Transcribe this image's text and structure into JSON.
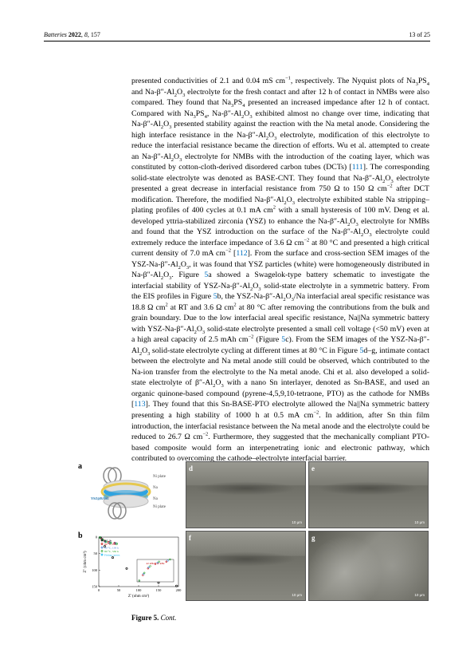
{
  "header": {
    "journal": "Batteries",
    "year": "2022",
    "volume": "8",
    "article": "157",
    "page": "13 of 25"
  },
  "body_html": "presented conductivities of 2.1 and 0.04 mS cm<sup>−1</sup>, respectively. The Nyquist plots of Na<sub>3</sub>PS<sub>4</sub> and Na-β″-Al<sub>2</sub>O<sub>3</sub> electrolyte for the fresh contact and after 12 h of contact in NMBs were also compared. They found that Na<sub>3</sub>PS<sub>4</sub> presented an increased impedance after 12 h of contact. Compared with Na<sub>3</sub>PS<sub>4</sub>, Na-β″-Al<sub>2</sub>O<sub>3</sub> exhibited almost no change over time, indicating that Na-β″-Al<sub>2</sub>O<sub>3</sub> presented stability against the reaction with the Na metal anode. Considering the high interface resistance in the Na-β″-Al<sub>2</sub>O<sub>3</sub> electrolyte, modification of this electrolyte to reduce the interfacial resistance became the direction of efforts. Wu et al. attempted to create an Na-β″-Al<sub>2</sub>O<sub>3</sub> electrolyte for NMBs with the introduction of the coating layer, which was constituted by cotton-cloth-derived disordered carbon tubes (DCTs) [<span class='ref'>111</span>]. The corresponding solid-state electrolyte was denoted as BASE-CNT. They found that Na-β″-Al<sub>2</sub>O<sub>3</sub> electrolyte presented a great decrease in interfacial resistance from 750 Ω to 150 Ω cm<sup>−2</sup> after DCT modification. Therefore, the modified Na-β″-Al<sub>2</sub>O<sub>3</sub> electrolyte exhibited stable Na stripping–plating profiles of 400 cycles at 0.1 mA cm<sup>2</sup> with a small hysteresis of 100 mV. Deng et al. developed yttria-stabilized zirconia (YSZ) to enhance the Na-β″-Al<sub>2</sub>O<sub>3</sub> electrolyte for NMBs and found that the YSZ introduction on the surface of the Na-β″-Al<sub>2</sub>O<sub>3</sub> electrolyte could extremely reduce the interface impedance of 3.6 Ω cm<sup>−2</sup> at 80 °C and presented a high critical current density of 7.0 mA cm<sup>−2</sup> [<span class='ref'>112</span>]. From the surface and cross-section SEM images of the YSZ-Na-β″-Al<sub>2</sub>O<sub>3</sub>, it was found that YSZ particles (white) were homogeneously distributed in Na-β″-Al<sub>2</sub>O<sub>3</sub>. Figure <span class='figref'>5</span>a showed a Swagelok-type battery schematic to investigate the interfacial stability of YSZ-Na-β″-Al<sub>2</sub>O<sub>3</sub> solid-state electrolyte in a symmetric battery. From the EIS profiles in Figure <span class='figref'>5</span>b, the YSZ-Na-β″-Al<sub>2</sub>O<sub>3</sub>/Na interfacial areal specific resistance was 18.8 Ω cm<sup>2</sup> at RT and 3.6 Ω cm<sup>2</sup> at 80 °C after removing the contributions from the bulk and grain boundary. Due to the low interfacial areal specific resistance, Na||Na symmetric battery with YSZ-Na-β″-Al<sub>2</sub>O<sub>3</sub> solid-state electrolyte presented a small cell voltage (&lt;50 mV) even at a high areal capacity of 2.5 mAh cm<sup>−2</sup> (Figure <span class='figref'>5</span>c). From the SEM images of the YSZ-Na-β″-Al<sub>2</sub>O<sub>3</sub> solid-state electrolyte cycling at different times at 80 °C in Figure <span class='figref'>5</span>d–g, intimate contact between the electrolyte and Na metal anode still could be observed, which contributed to the Na-ion transfer from the electrolyte to the Na metal anode. Chi et al. also developed a solid-state electrolyte of β″-Al<sub>2</sub>O<sub>3</sub> with a nano Sn interlayer, denoted as Sn-BASE, and used an organic quinone-based compound (pyrene-4,5,9,10-tetraone, PTO) as the cathode for NMBs [<span class='ref'>113</span>]. They found that this Sn-BASE-PTO electrolyte allowed the Na||Na symmetric battery presenting a high stability of 1000 h at 0.5 mA cm<sup>−2</sup>. In addition, after Sn thin film introduction, the interfacial resistance between the Na metal anode and the electrolyte could be reduced to 26.7 Ω cm<sup>−2</sup>. Furthermore, they suggested that the mechanically compliant PTO-based composite would form an interpenetrating ionic and electronic pathway, which contributed to overcoming the cathode–electrolyte interfacial barrier.",
  "figure": {
    "panels": [
      "a",
      "b",
      "d",
      "e",
      "f",
      "g"
    ],
    "scalebar_top": "10 μm",
    "scalebar_bottom": "10 μm",
    "schematic_labels": [
      "Ni plate",
      "Na",
      "YSZ@BASE",
      "Na",
      "Ni plate"
    ],
    "eis": {
      "legend": [
        "RT, 0h",
        "80 °C, 0 h",
        "80 °C, 139 h",
        "80 °C, 530 h",
        "Fitting curves"
      ],
      "legend_colors": [
        "#000000",
        "#c00000",
        "#3a7fd5",
        "#29a329",
        "#00b0f0"
      ],
      "xlabel": "Z' (ohm cm²)",
      "ylabel": "Z'' (ohm cm²)",
      "xlim": [
        0,
        200
      ],
      "xtick": [
        0,
        50,
        100,
        150,
        200
      ],
      "ylim": [
        -150,
        0
      ],
      "ytick": [
        -150,
        -100,
        -50,
        0
      ],
      "inset_xlim": [
        0,
        50
      ],
      "inset_ylim": [
        0,
        20
      ],
      "inset_annot": "42 kHz / 12 kHz",
      "series": {
        "rt0h": [
          [
            5,
            -2
          ],
          [
            15,
            -28
          ],
          [
            35,
            -62
          ],
          [
            70,
            -95
          ],
          [
            110,
            -120
          ],
          [
            150,
            -138
          ],
          [
            195,
            -148
          ]
        ],
        "80c0h": [
          [
            3,
            -1
          ],
          [
            8,
            -6
          ],
          [
            15,
            -12
          ],
          [
            25,
            -16
          ],
          [
            40,
            -18
          ]
        ],
        "80c139": [
          [
            3,
            -1
          ],
          [
            9,
            -7
          ],
          [
            16,
            -13
          ],
          [
            28,
            -17
          ],
          [
            42,
            -19
          ]
        ],
        "80c530": [
          [
            3,
            -1
          ],
          [
            10,
            -8
          ],
          [
            18,
            -14
          ],
          [
            30,
            -18
          ],
          [
            45,
            -20
          ]
        ]
      }
    }
  },
  "caption_label": "Figure 5.",
  "caption_rest": " Cont."
}
